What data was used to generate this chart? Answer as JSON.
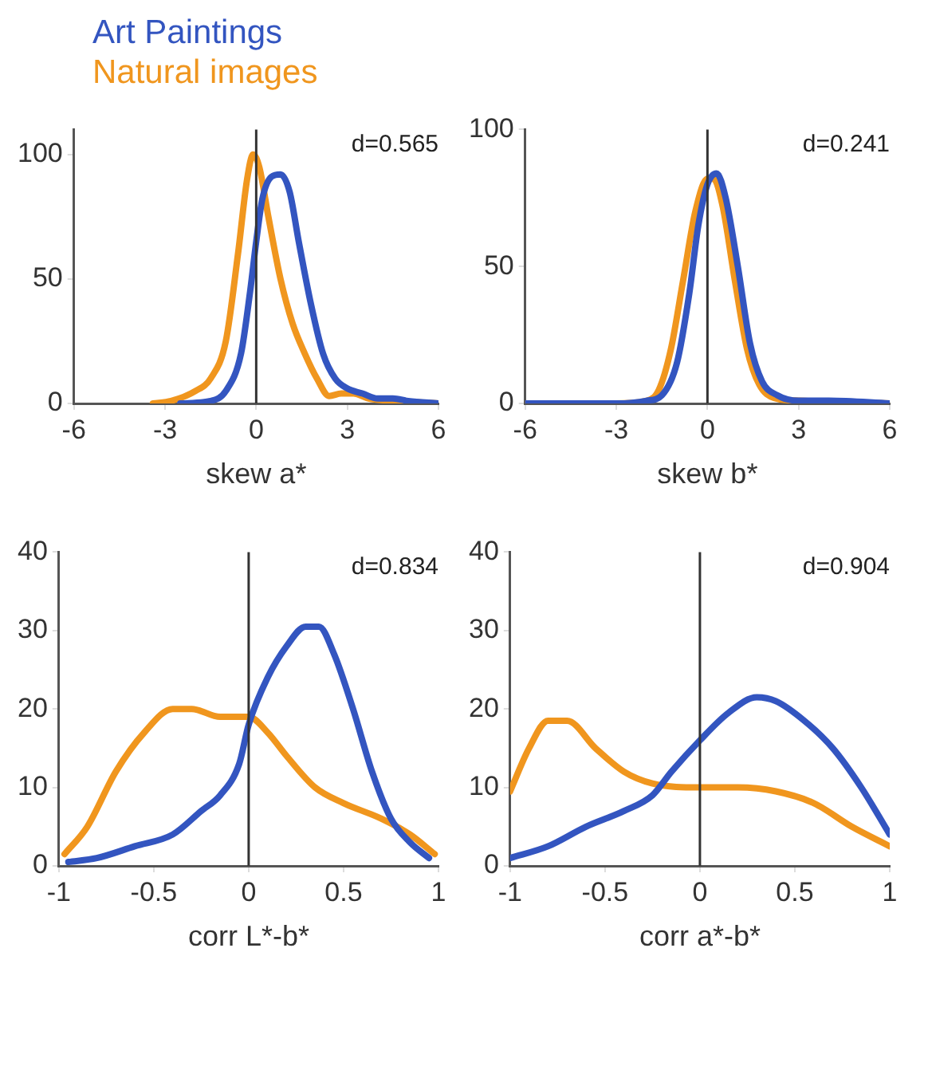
{
  "chart_data": [
    {
      "type": "line",
      "xlabel": "skew a*",
      "xlim": [
        -6,
        6
      ],
      "xticks": [
        -6,
        -3,
        0,
        3,
        6
      ],
      "ylim": [
        0,
        110
      ],
      "yticks": [
        0,
        50,
        100
      ],
      "grid": false,
      "legend": "top left",
      "marker": "none",
      "annotations": [
        "d=0.565"
      ],
      "ref_lines": [
        {
          "axis": "x",
          "value": 0,
          "color": "#333333"
        }
      ],
      "series": [
        {
          "name": "Art Paintings",
          "color": "#3355c0",
          "x": [
            -2.5,
            -1.5,
            -1,
            -0.5,
            -0.2,
            0,
            0.2,
            0.5,
            0.8,
            1.1,
            1.4,
            1.8,
            2.2,
            2.6,
            3,
            3.5,
            4,
            4.5,
            5,
            6
          ],
          "values": [
            0,
            1,
            5,
            20,
            45,
            65,
            82,
            91,
            92,
            85,
            65,
            40,
            20,
            10,
            6,
            4,
            2,
            2,
            1,
            0
          ]
        },
        {
          "name": "Natural images",
          "color": "#f0961e",
          "x": [
            -3.4,
            -2.8,
            -2,
            -1.5,
            -1,
            -0.6,
            -0.3,
            -0.1,
            0.1,
            0.4,
            0.8,
            1.2,
            1.6,
            2,
            2.4,
            2.8,
            3.2,
            3.7,
            4.5,
            6
          ],
          "values": [
            0,
            1,
            5,
            10,
            25,
            60,
            90,
            100,
            95,
            75,
            50,
            32,
            20,
            10,
            3,
            4,
            4,
            2,
            1,
            0
          ]
        }
      ]
    },
    {
      "type": "line",
      "xlabel": "skew b*",
      "xlim": [
        -6,
        6
      ],
      "xticks": [
        -6,
        -3,
        0,
        3,
        6
      ],
      "ylim": [
        0,
        100
      ],
      "yticks": [
        0,
        50,
        100
      ],
      "grid": false,
      "marker": "none",
      "annotations": [
        "d=0.241"
      ],
      "ref_lines": [
        {
          "axis": "x",
          "value": 0,
          "color": "#333333"
        }
      ],
      "series": [
        {
          "color": "#3355c0",
          "x": [
            -6,
            -3,
            -2,
            -1.5,
            -1,
            -0.6,
            -0.3,
            0,
            0.3,
            0.6,
            1,
            1.4,
            1.8,
            2.3,
            3,
            4,
            6
          ],
          "values": [
            0,
            0,
            1,
            3,
            15,
            40,
            65,
            80,
            84,
            75,
            50,
            22,
            8,
            3,
            1,
            1,
            0
          ]
        },
        {
          "color": "#f0961e",
          "x": [
            -6,
            -3,
            -2,
            -1.6,
            -1.2,
            -0.8,
            -0.4,
            0,
            0.2,
            0.5,
            0.9,
            1.3,
            1.7,
            2.2,
            3,
            6
          ],
          "values": [
            0,
            0,
            1,
            5,
            20,
            45,
            70,
            82,
            82,
            72,
            45,
            20,
            7,
            2,
            1,
            0
          ]
        }
      ]
    },
    {
      "type": "line",
      "xlabel": "corr L*-b*",
      "xlim": [
        -1,
        1
      ],
      "xticks": [
        -1,
        -0.5,
        0,
        0.5,
        1
      ],
      "ylim": [
        0,
        40
      ],
      "yticks": [
        0,
        10,
        20,
        30,
        40
      ],
      "grid": false,
      "marker": "none",
      "annotations": [
        "d=0.834"
      ],
      "ref_lines": [
        {
          "axis": "x",
          "value": 0,
          "color": "#333333"
        }
      ],
      "series": [
        {
          "color": "#3355c0",
          "x": [
            -0.95,
            -0.8,
            -0.6,
            -0.4,
            -0.25,
            -0.15,
            -0.05,
            0,
            0.1,
            0.2,
            0.3,
            0.37,
            0.45,
            0.55,
            0.65,
            0.75,
            0.85,
            0.95
          ],
          "values": [
            0.5,
            1,
            2.5,
            4,
            7,
            9,
            13,
            18,
            24,
            28,
            30.5,
            30.5,
            27,
            20,
            12,
            6,
            3,
            1
          ]
        },
        {
          "color": "#f0961e",
          "x": [
            -0.97,
            -0.85,
            -0.7,
            -0.55,
            -0.4,
            -0.3,
            -0.15,
            0,
            0.1,
            0.2,
            0.35,
            0.5,
            0.7,
            0.85,
            0.98
          ],
          "values": [
            1.5,
            5,
            12,
            17,
            20,
            20,
            19,
            19,
            17,
            14,
            10,
            8,
            6,
            4,
            1.5
          ]
        }
      ]
    },
    {
      "type": "line",
      "xlabel": "corr a*-b*",
      "xlim": [
        -1,
        1
      ],
      "xticks": [
        -1,
        -0.5,
        0,
        0.5,
        1
      ],
      "ylim": [
        0,
        40
      ],
      "yticks": [
        0,
        10,
        20,
        30,
        40
      ],
      "grid": false,
      "marker": "none",
      "annotations": [
        "d=0.904"
      ],
      "ref_lines": [
        {
          "axis": "x",
          "value": 0,
          "color": "#333333"
        }
      ],
      "series": [
        {
          "color": "#3355c0",
          "x": [
            -1,
            -0.8,
            -0.6,
            -0.4,
            -0.25,
            -0.15,
            0,
            0.15,
            0.3,
            0.4,
            0.55,
            0.7,
            0.85,
            1
          ],
          "values": [
            1,
            2.5,
            5,
            7,
            9,
            12,
            16,
            19.5,
            21.5,
            21,
            18.5,
            15,
            10,
            4
          ]
        },
        {
          "color": "#f0961e",
          "x": [
            -1,
            -0.9,
            -0.8,
            -0.7,
            -0.55,
            -0.4,
            -0.25,
            0,
            0.2,
            0.4,
            0.6,
            0.8,
            1
          ],
          "values": [
            9.5,
            15,
            18.5,
            18.5,
            15,
            12,
            10.5,
            10,
            10,
            9.5,
            8,
            5,
            2.5
          ]
        }
      ]
    }
  ]
}
